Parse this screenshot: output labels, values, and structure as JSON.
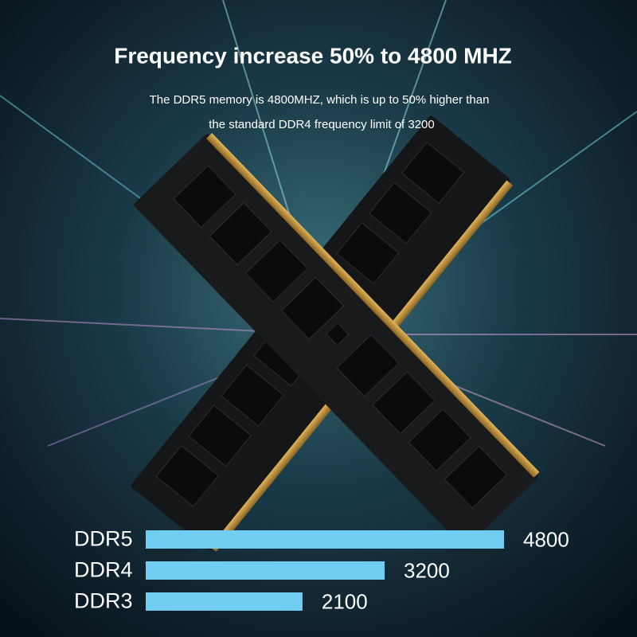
{
  "chart_data": {
    "type": "hbar",
    "title": "Frequency increase 50% to 4800 MHZ",
    "subtitle": [
      "The DDR5 memory is 4800MHZ, which is up to 50% higher than",
      "the standard DDR4 frequency limit of 3200"
    ],
    "categories": [
      "DDR5",
      "DDR4",
      "DDR3"
    ],
    "values": [
      4800,
      3200,
      2100
    ],
    "color": "#72cdf2"
  }
}
